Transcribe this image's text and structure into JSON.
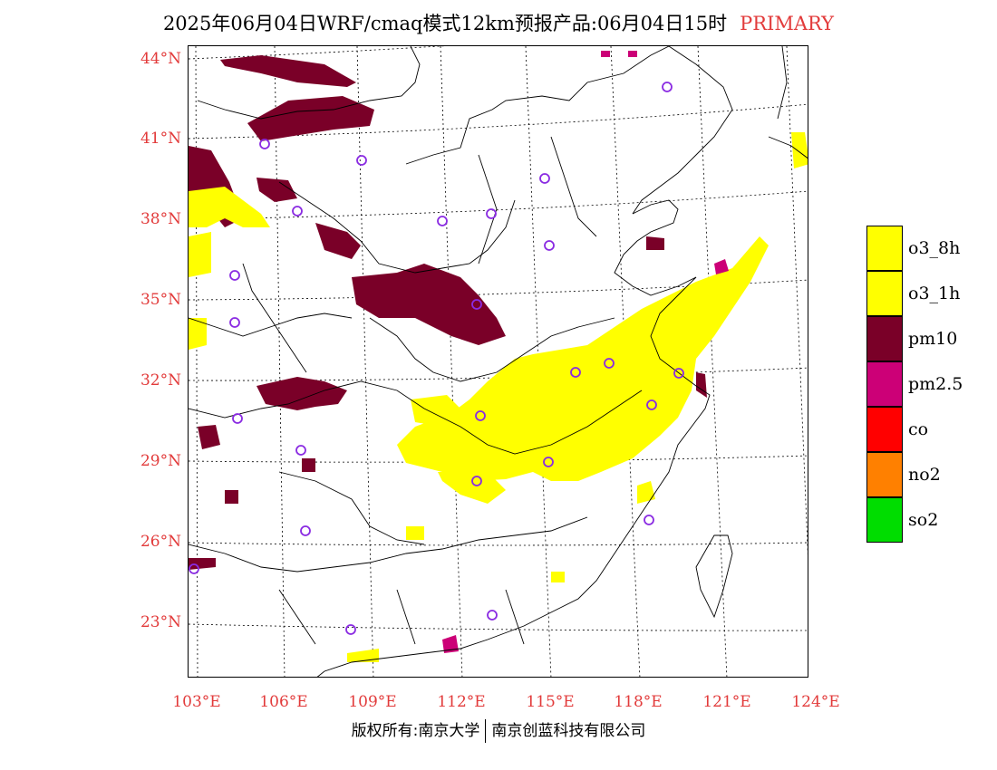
{
  "header": {
    "title": "2025年06月04日WRF/cmaq模式12km预报产品:06月04日15时",
    "tag": "PRIMARY",
    "tag_color": "#e23b3b"
  },
  "map": {
    "lat_labels": [
      "44°N",
      "41°N",
      "38°N",
      "35°N",
      "32°N",
      "29°N",
      "26°N",
      "23°N"
    ],
    "lon_labels": [
      "103°E",
      "106°E",
      "109°E",
      "112°E",
      "115°E",
      "118°E",
      "121°E",
      "124°E"
    ],
    "label_color": "#e23b3b",
    "city_marker_color": "#8a2be2",
    "boundary_color": "#000000"
  },
  "legend": {
    "items": [
      {
        "label": "o3_8h",
        "color": "#ffff00"
      },
      {
        "label": "o3_1h",
        "color": "#ffff00"
      },
      {
        "label": "pm10",
        "color": "#7a0028"
      },
      {
        "label": "pm2.5",
        "color": "#cc0077"
      },
      {
        "label": "co",
        "color": "#ff0000"
      },
      {
        "label": "no2",
        "color": "#ff8000"
      },
      {
        "label": "so2",
        "color": "#00dd00"
      }
    ]
  },
  "footer": {
    "left": "版权所有:南京大学",
    "right": "南京创蓝科技有限公司"
  }
}
